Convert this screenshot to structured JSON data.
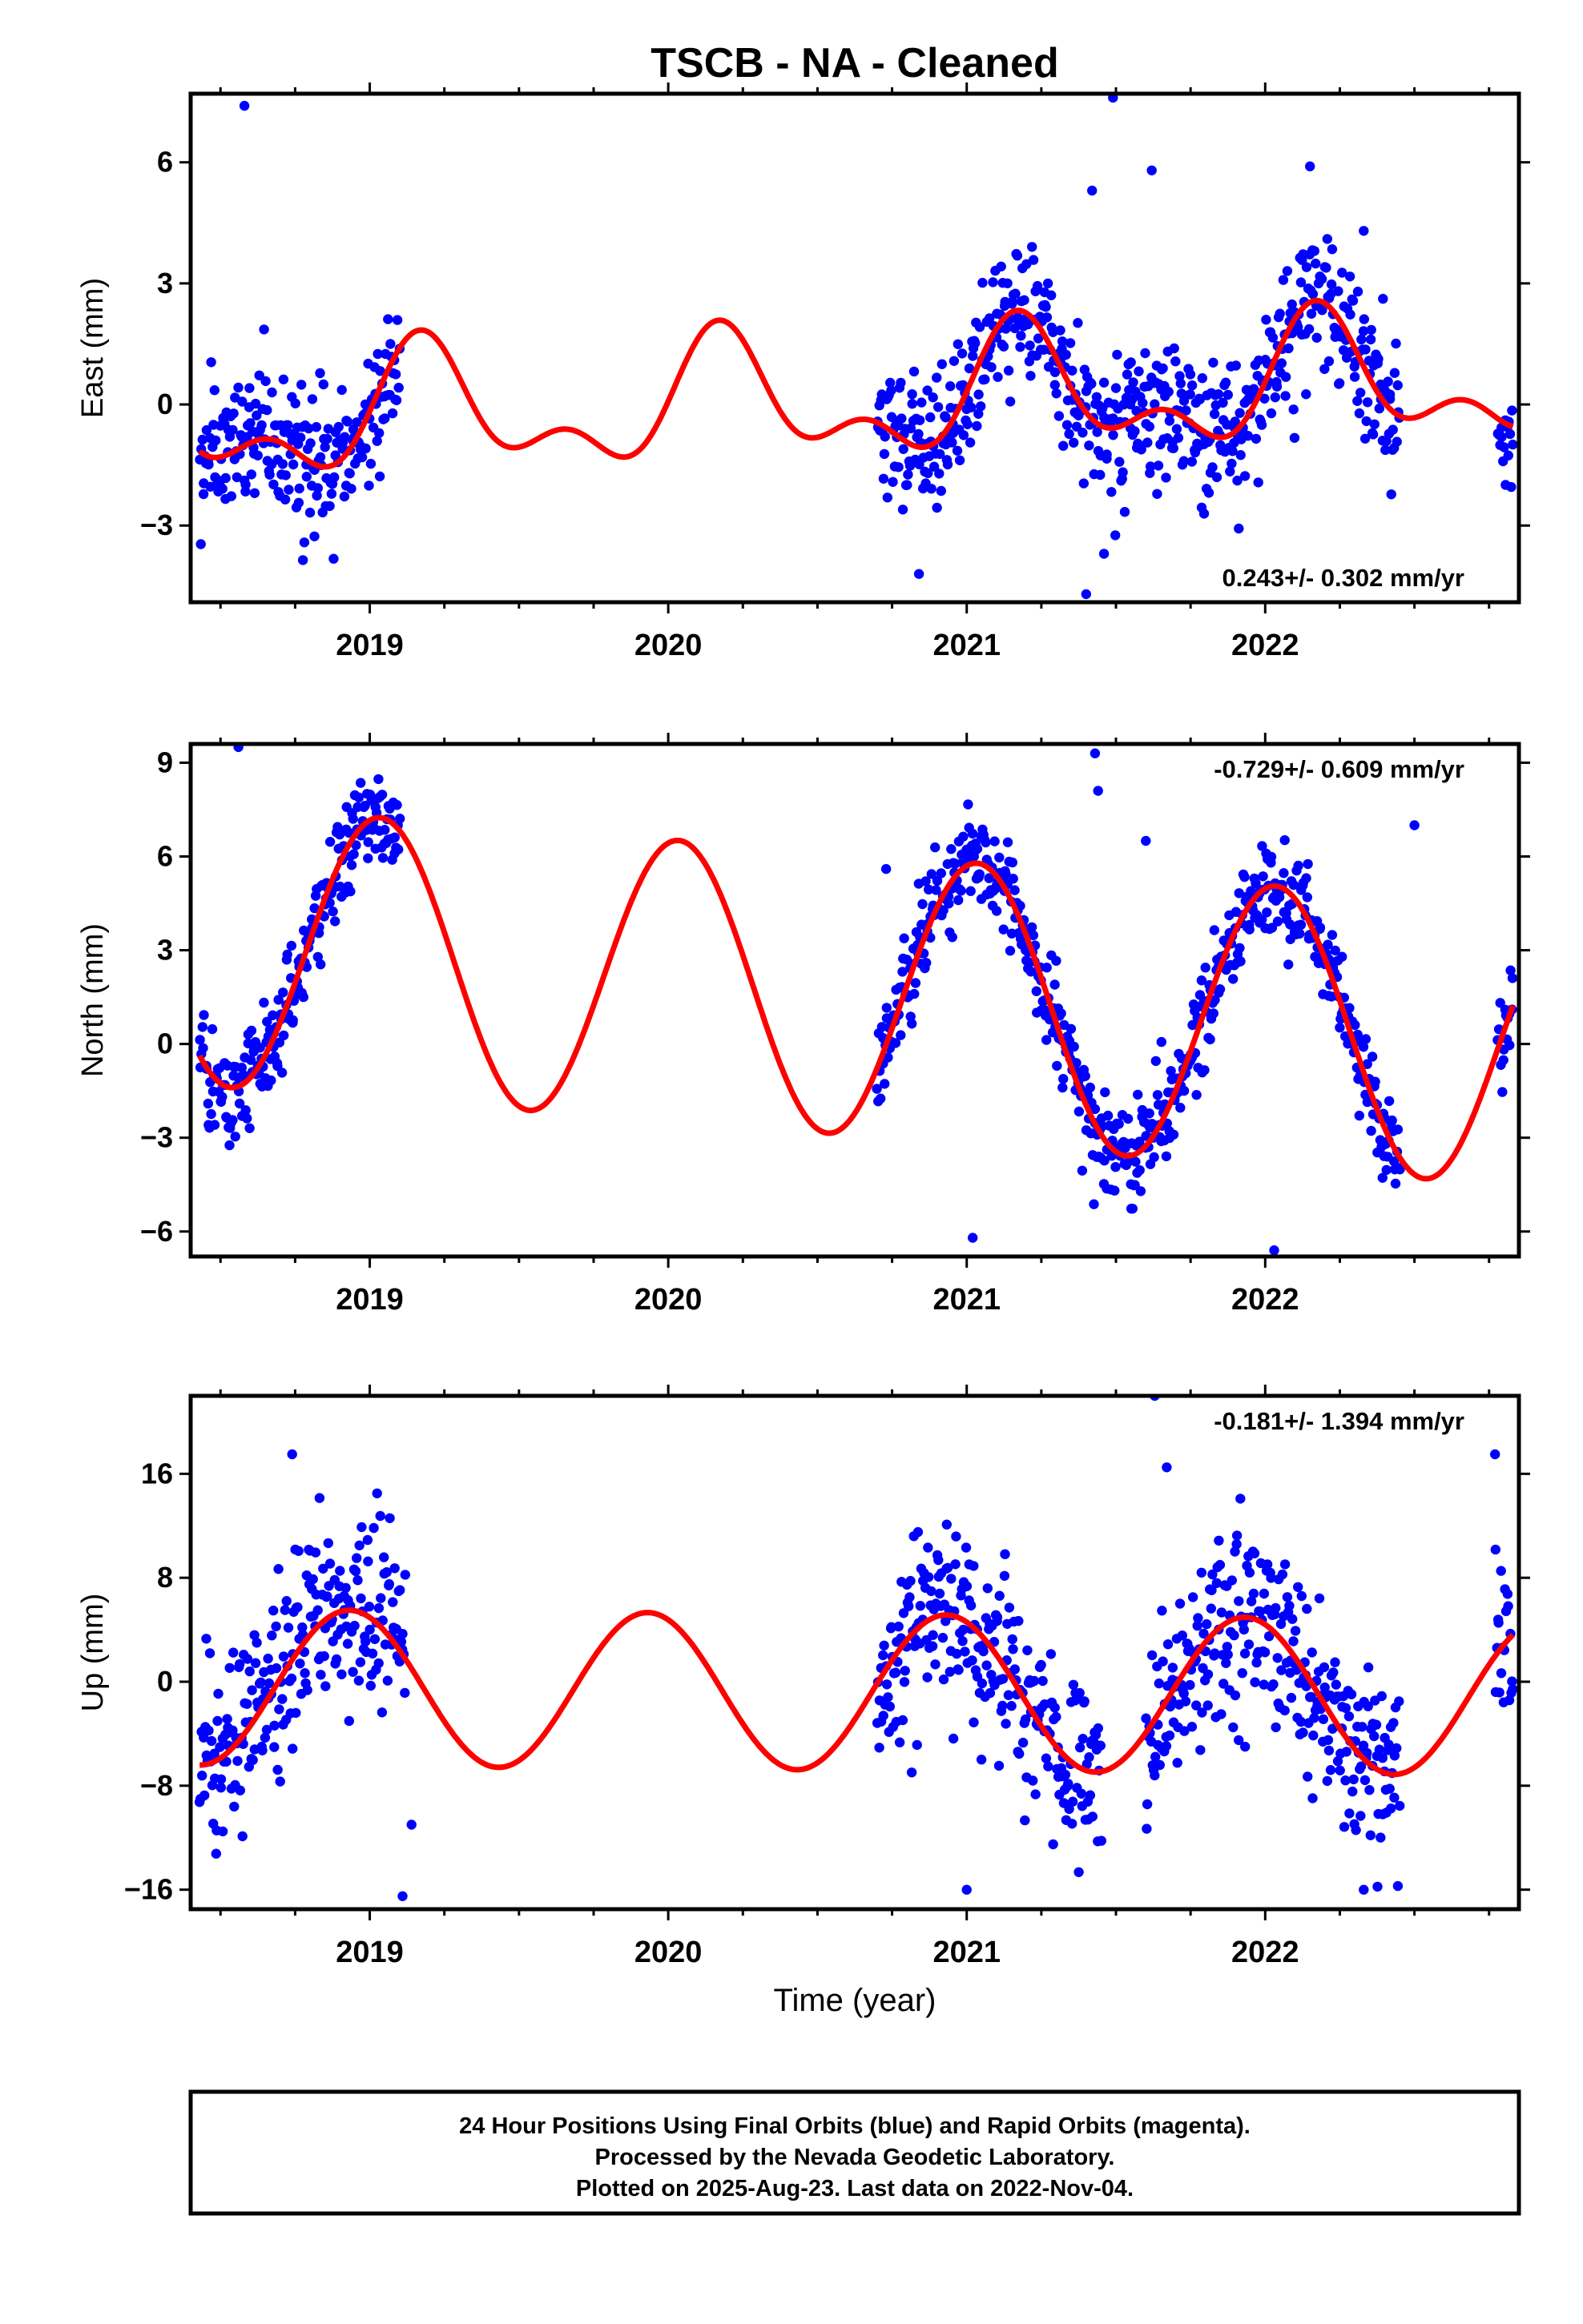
{
  "title": "TSCB  - NA - Cleaned",
  "colors": {
    "final_orbits": "#0000ff",
    "model_fit": "#ff0000",
    "frame": "#000000",
    "background": "#ffffff"
  },
  "chart_data": [
    {
      "type": "scatter",
      "component": "east",
      "ylabel": "East (mm)",
      "xlabel": "",
      "xlim": [
        2018.4,
        2022.85
      ],
      "ylim": [
        -4.9,
        7.7
      ],
      "yticks": [
        -3,
        0,
        3,
        6
      ],
      "xticks": [
        2019,
        2020,
        2021,
        2022
      ],
      "grid": false,
      "rate_label": "0.243+/- 0.302 mm/yr",
      "rate_label_position": "bottom-right",
      "fit": {
        "offset": 0.1,
        "annual_amp": 1.3,
        "annual_phase": 0.4,
        "semi_amp": 0.8,
        "semi_phase": -0.5,
        "trend": 0.243
      },
      "series": [
        {
          "name": "Final Orbits",
          "color": "#0000ff",
          "scatter_sigma": 0.9,
          "segments": [
            [
              2018.43,
              2019.1
            ],
            [
              2020.7,
              2021.55
            ],
            [
              2021.55,
              2022.45
            ],
            [
              2022.78,
              2022.83
            ]
          ]
        },
        {
          "name": "Model fit",
          "color": "#ff0000",
          "range": [
            2018.43,
            2022.83
          ]
        }
      ],
      "outliers": [
        [
          2018.58,
          7.4
        ],
        [
          2021.49,
          7.6
        ],
        [
          2022.15,
          5.9
        ],
        [
          2021.62,
          5.8
        ],
        [
          2021.42,
          5.3
        ],
        [
          2021.4,
          -4.7
        ],
        [
          2021.46,
          -3.7
        ],
        [
          2020.84,
          -4.2
        ],
        [
          2022.33,
          4.3
        ]
      ]
    },
    {
      "type": "scatter",
      "component": "north",
      "ylabel": "North (mm)",
      "xlabel": "",
      "xlim": [
        2018.4,
        2022.85
      ],
      "ylim": [
        -6.8,
        9.6
      ],
      "yticks": [
        -6,
        -3,
        0,
        3,
        6,
        9
      ],
      "xticks": [
        2019,
        2020,
        2021,
        2022
      ],
      "grid": false,
      "rate_label": "-0.729+/- 0.609 mm/yr",
      "rate_label_position": "top-right",
      "fit": {
        "offset": 1.6,
        "annual_amp": 4.5,
        "annual_phase": 1.35,
        "semi_amp": 0.0,
        "semi_phase": 0.0,
        "trend": -0.729
      },
      "series": [
        {
          "name": "Final Orbits",
          "color": "#0000ff",
          "scatter_sigma": 0.8,
          "segments": [
            [
              2018.43,
              2019.1
            ],
            [
              2020.7,
              2021.55
            ],
            [
              2021.55,
              2022.45
            ],
            [
              2022.78,
              2022.83
            ]
          ]
        },
        {
          "name": "Model fit",
          "color": "#ff0000",
          "range": [
            2018.43,
            2022.83
          ]
        }
      ],
      "outliers": [
        [
          2018.56,
          9.5
        ],
        [
          2021.43,
          9.3
        ],
        [
          2021.44,
          8.1
        ],
        [
          2022.5,
          7.0
        ],
        [
          2021.6,
          6.5
        ],
        [
          2020.73,
          5.6
        ],
        [
          2021.02,
          -6.2
        ],
        [
          2022.03,
          -6.6
        ]
      ]
    },
    {
      "type": "scatter",
      "component": "up",
      "ylabel": "Up (mm)",
      "xlabel": "Time (year)",
      "xlim": [
        2018.4,
        2022.85
      ],
      "ylim": [
        -17.5,
        22
      ],
      "yticks": [
        -16,
        -8,
        0,
        8,
        16
      ],
      "xticks": [
        2019,
        2020,
        2021,
        2022
      ],
      "grid": false,
      "rate_label": "-0.181+/- 1.394 mm/yr",
      "rate_label_position": "top-right",
      "fit": {
        "offset": -0.8,
        "annual_amp": 6.0,
        "annual_phase": 2.0,
        "semi_amp": 0.0,
        "semi_phase": 0.0,
        "trend": -0.181
      },
      "series": [
        {
          "name": "Final Orbits",
          "color": "#0000ff",
          "scatter_sigma": 3.5,
          "segments": [
            [
              2018.43,
              2019.12
            ],
            [
              2020.7,
              2021.45
            ],
            [
              2021.6,
              2022.45
            ],
            [
              2022.77,
              2022.83
            ]
          ]
        },
        {
          "name": "Model fit",
          "color": "#ff0000",
          "range": [
            2018.43,
            2022.83
          ]
        }
      ],
      "outliers": [
        [
          2021.63,
          22.0
        ],
        [
          2022.77,
          17.5
        ],
        [
          2018.74,
          17.5
        ],
        [
          2021.67,
          16.5
        ],
        [
          2019.11,
          -16.5
        ],
        [
          2021.0,
          -16.0
        ],
        [
          2022.33,
          -16.0
        ],
        [
          2019.14,
          -11.0
        ]
      ]
    }
  ],
  "footer": {
    "line1": "24 Hour Positions Using Final Orbits (blue) and Rapid Orbits (magenta).",
    "line2": "Processed by the Nevada Geodetic Laboratory.",
    "line3": "Plotted on 2025-Aug-23. Last data on 2022-Nov-04."
  }
}
